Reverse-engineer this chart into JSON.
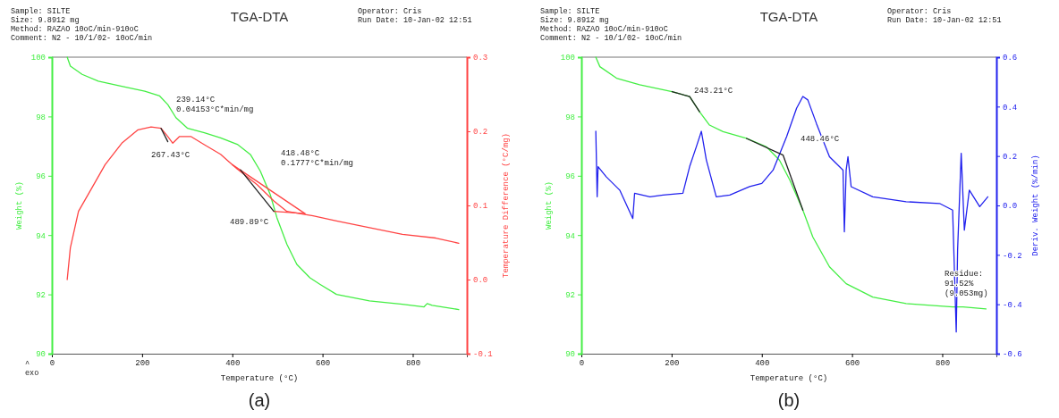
{
  "chart_data": [
    {
      "type": "line",
      "title": "TGA-DTA",
      "subtitle": "Sample: SILTE\nSize:   9.8912 mg\nMethod: RAZAO 10oC/min-910oC\nComment: N2 - 10/1/02- 10oC/min",
      "xlabel": "Temperature (°C)",
      "ylabel": "Weight (%)",
      "y2label": "Temperature Difference (°C/mg)",
      "xlim": [
        0,
        920
      ],
      "xticks": [
        0,
        200,
        400,
        600,
        800
      ],
      "ylim": [
        90,
        100
      ],
      "yticks": [
        90,
        92,
        94,
        96,
        98,
        100
      ],
      "y2lim": [
        -0.1,
        0.3
      ],
      "y2ticks": [
        -0.1,
        {
          "value": 0,
          "label": "0.0"
        },
        0.1,
        0.2,
        0.3
      ],
      "series": [
        {
          "color": "#44ee44",
          "x": [
            34,
            41,
            67,
            103,
            155,
            206,
            239,
            257,
            275,
            301,
            338,
            374,
            411,
            440,
            462,
            484,
            499,
            521,
            543,
            572,
            594,
            631,
            704,
            777,
            825,
            832,
            843,
            902
          ],
          "values": [
            100,
            99.7,
            99.42,
            99.19,
            99.02,
            98.85,
            98.69,
            98.4,
            97.96,
            97.6,
            97.45,
            97.28,
            97.06,
            96.72,
            96.16,
            95.37,
            94.58,
            93.69,
            93.01,
            92.56,
            92.34,
            92,
            91.78,
            91.67,
            91.58,
            91.69,
            91.63,
            91.49
          ]
        },
        {
          "color": "#ff4444",
          "axis": "y2",
          "x": [
            34,
            41,
            59,
            89,
            118,
            155,
            191,
            220,
            242,
            257,
            268,
            283,
            308,
            338,
            374,
            411,
            455,
            492,
            521,
            558,
            579,
            631,
            704,
            777,
            851,
            902
          ],
          "values": [
            0,
            0.043,
            0.092,
            0.124,
            0.155,
            0.184,
            0.202,
            0.206,
            0.204,
            0.193,
            0.184,
            0.193,
            0.193,
            0.182,
            0.169,
            0.149,
            0.128,
            0.106,
            0.092,
            0.088,
            0.086,
            0.079,
            0.07,
            0.061,
            0.056,
            0.049
          ]
        },
        {
          "color": "#ff4444",
          "axis": "y2",
          "x": [
            400,
            561
          ],
          "values": [
            0.155,
            0.089
          ]
        },
        {
          "color": "#ff4444",
          "axis": "y2",
          "x": [
            492,
            561
          ],
          "values": [
            0.092,
            0.089
          ]
        },
        {
          "color": "#222222",
          "axis": "y2",
          "x": [
            242,
            257
          ],
          "values": [
            0.204,
            0.186
          ]
        },
        {
          "color": "#222222",
          "axis": "y2",
          "x": [
            418,
            492
          ],
          "values": [
            0.148,
            0.092
          ]
        }
      ],
      "annotations": [
        "Operator: Cris\nRun Date: 10-Jan-02 12:51",
        "(a)",
        "^\nexo",
        "239.14°C\n0.04153°C*min/mg",
        "267.43°C",
        "418.48°C\n0.1777°C*min/mg",
        "489.89°C"
      ]
    },
    {
      "type": "line",
      "title": "TGA-DTA",
      "subtitle": "Sample: SILTE\nSize:   9.8912 mg\nMethod: RAZAO 10oC/min-910oC\nComment: N2 - 10/1/02- 10oC/min",
      "xlabel": "Temperature (°C)",
      "ylabel": "Weight (%)",
      "y2label": "Deriv. Weight (%/min)",
      "xlim": [
        0,
        920
      ],
      "xticks": [
        0,
        200,
        400,
        600,
        800
      ],
      "ylim": [
        90,
        100
      ],
      "yticks": [
        90,
        92,
        94,
        96,
        98,
        100
      ],
      "y2lim": [
        -0.6,
        0.6
      ],
      "y2ticks": [
        -0.6,
        -0.4,
        -0.2,
        {
          "value": 0,
          "label": "0.0"
        },
        0.2,
        0.4,
        0.6
      ],
      "series": [
        {
          "color": "#44ee44",
          "x": [
            32,
            41,
            78,
            129,
            201,
            240,
            262,
            284,
            314,
            366,
            410,
            439,
            462,
            491,
            513,
            550,
            587,
            646,
            720,
            823,
            846,
            897
          ],
          "values": [
            100,
            99.68,
            99.29,
            99.07,
            98.84,
            98.67,
            98.16,
            97.71,
            97.49,
            97.26,
            96.98,
            96.53,
            95.86,
            94.84,
            93.94,
            92.93,
            92.36,
            91.91,
            91.69,
            91.58,
            91.58,
            91.51
          ]
        },
        {
          "color": "#2222ee",
          "axis": "y2",
          "x": [
            32,
            35,
            37,
            55,
            85,
            114,
            118,
            152,
            181,
            225,
            240,
            255,
            266,
            277,
            299,
            329,
            373,
            400,
            425,
            455,
            477,
            491,
            502,
            521,
            550,
            580,
            583,
            587,
            591,
            598,
            646,
            720,
            794,
            823,
            831,
            834,
            842,
            849,
            860,
            883,
            901
          ],
          "values": [
            0.3,
            0.035,
            0.157,
            0.116,
            0.062,
            -0.053,
            0.049,
            0.035,
            0.042,
            0.049,
            0.157,
            0.238,
            0.3,
            0.184,
            0.035,
            0.042,
            0.076,
            0.089,
            0.143,
            0.278,
            0.393,
            0.441,
            0.427,
            0.332,
            0.197,
            0.143,
            -0.107,
            0.143,
            0.197,
            0.076,
            0.035,
            0.015,
            0.008,
            -0.019,
            -0.512,
            -0.181,
            0.211,
            -0.1,
            0.062,
            -0.005,
            0.035
          ]
        },
        {
          "color": "#222222",
          "x": [
            201,
            240,
            262
          ],
          "values": [
            98.84,
            98.67,
            98.16
          ]
        },
        {
          "color": "#222222",
          "x": [
            366,
            447,
            491
          ],
          "values": [
            97.26,
            96.7,
            94.84
          ]
        }
      ],
      "annotations": [
        "Operator: Cris\nRun Date: 10-Jan-02 12:51",
        "(b)",
        "243.21°C",
        "448.46°C",
        "Residue:\n91.52%\n(9.053mg)"
      ]
    }
  ]
}
